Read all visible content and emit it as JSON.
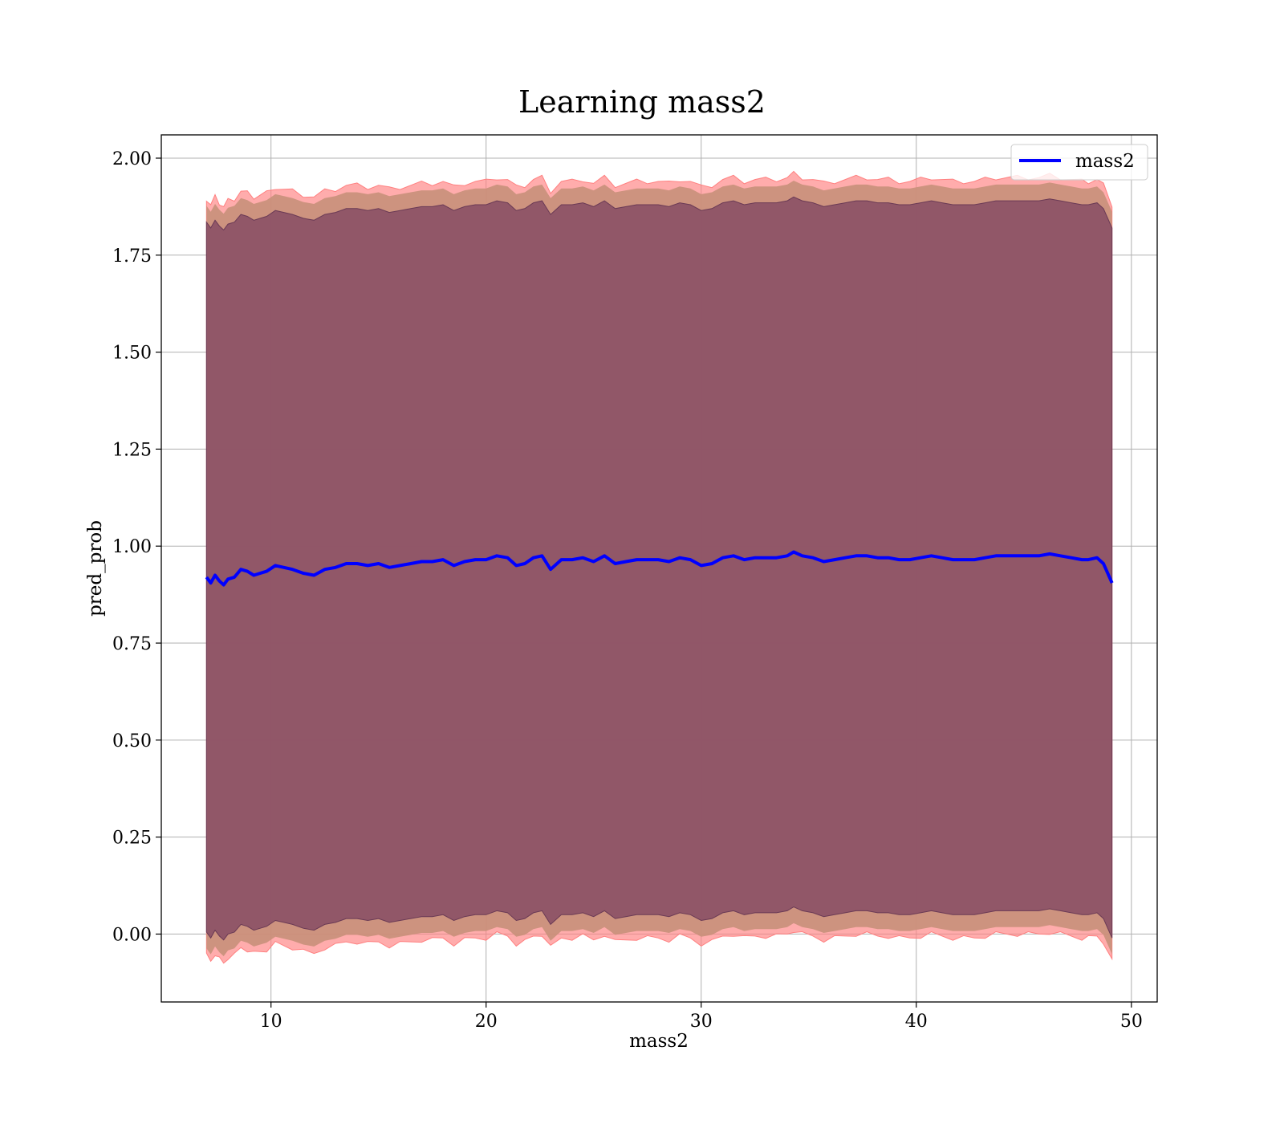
{
  "chart_data": {
    "type": "line",
    "title": "Learning mass2",
    "xlabel": "mass2",
    "ylabel": "pred_prob",
    "xlim": [
      4.9,
      51.2
    ],
    "ylim": [
      -0.175,
      2.06
    ],
    "xticks": [
      10,
      20,
      30,
      40,
      50
    ],
    "yticks": [
      0.0,
      0.25,
      0.5,
      0.75,
      1.0,
      1.25,
      1.5,
      1.75,
      2.0
    ],
    "xtick_labels": [
      "10",
      "20",
      "30",
      "40",
      "50"
    ],
    "ytick_labels": [
      "0.00",
      "0.25",
      "0.50",
      "0.75",
      "1.00",
      "1.25",
      "1.50",
      "1.75",
      "2.00"
    ],
    "grid": true,
    "legend": {
      "position": "top-right",
      "entries": [
        "mass2"
      ]
    },
    "colors": {
      "line": "#0000ff",
      "band_outer": "#ff8080",
      "band_inner": "#7a4060",
      "band_mid": "#c8907a"
    },
    "series": [
      {
        "name": "mass2",
        "x": [
          7.0,
          7.2,
          7.4,
          7.6,
          7.8,
          8.0,
          8.3,
          8.6,
          8.9,
          9.2,
          9.5,
          9.8,
          10.2,
          10.6,
          11.0,
          11.5,
          12.0,
          12.5,
          13.0,
          13.5,
          14.0,
          14.5,
          15.0,
          15.5,
          16.0,
          16.5,
          17.0,
          17.5,
          18.0,
          18.5,
          19.0,
          19.5,
          20.0,
          20.5,
          21.0,
          21.4,
          21.8,
          22.2,
          22.6,
          23.0,
          23.5,
          24.0,
          24.5,
          25.0,
          25.5,
          26.0,
          26.5,
          27.0,
          27.5,
          28.0,
          28.5,
          29.0,
          29.5,
          30.0,
          30.5,
          31.0,
          31.5,
          32.0,
          32.5,
          33.0,
          33.5,
          34.0,
          34.3,
          34.7,
          35.2,
          35.7,
          36.2,
          36.7,
          37.2,
          37.7,
          38.2,
          38.7,
          39.2,
          39.7,
          40.2,
          40.7,
          41.2,
          41.7,
          42.2,
          42.7,
          43.2,
          43.7,
          44.2,
          44.7,
          45.2,
          45.7,
          46.2,
          46.7,
          47.2,
          47.7,
          48.0,
          48.4,
          48.7,
          49.1
        ],
        "y": [
          0.92,
          0.905,
          0.925,
          0.91,
          0.9,
          0.915,
          0.92,
          0.94,
          0.935,
          0.925,
          0.93,
          0.935,
          0.95,
          0.945,
          0.94,
          0.93,
          0.925,
          0.94,
          0.945,
          0.955,
          0.955,
          0.95,
          0.955,
          0.945,
          0.95,
          0.955,
          0.96,
          0.96,
          0.965,
          0.95,
          0.96,
          0.965,
          0.965,
          0.975,
          0.97,
          0.95,
          0.955,
          0.97,
          0.975,
          0.94,
          0.965,
          0.965,
          0.97,
          0.96,
          0.975,
          0.955,
          0.96,
          0.965,
          0.965,
          0.965,
          0.96,
          0.97,
          0.965,
          0.95,
          0.955,
          0.97,
          0.975,
          0.965,
          0.97,
          0.97,
          0.97,
          0.975,
          0.985,
          0.975,
          0.97,
          0.96,
          0.965,
          0.97,
          0.975,
          0.975,
          0.97,
          0.97,
          0.965,
          0.965,
          0.97,
          0.975,
          0.97,
          0.965,
          0.965,
          0.965,
          0.97,
          0.975,
          0.975,
          0.975,
          0.975,
          0.975,
          0.98,
          0.975,
          0.97,
          0.965,
          0.965,
          0.97,
          0.955,
          0.905
        ],
        "band_outer_halfwidth": 0.975,
        "band_inner_halfwidth": 0.915
      }
    ]
  }
}
